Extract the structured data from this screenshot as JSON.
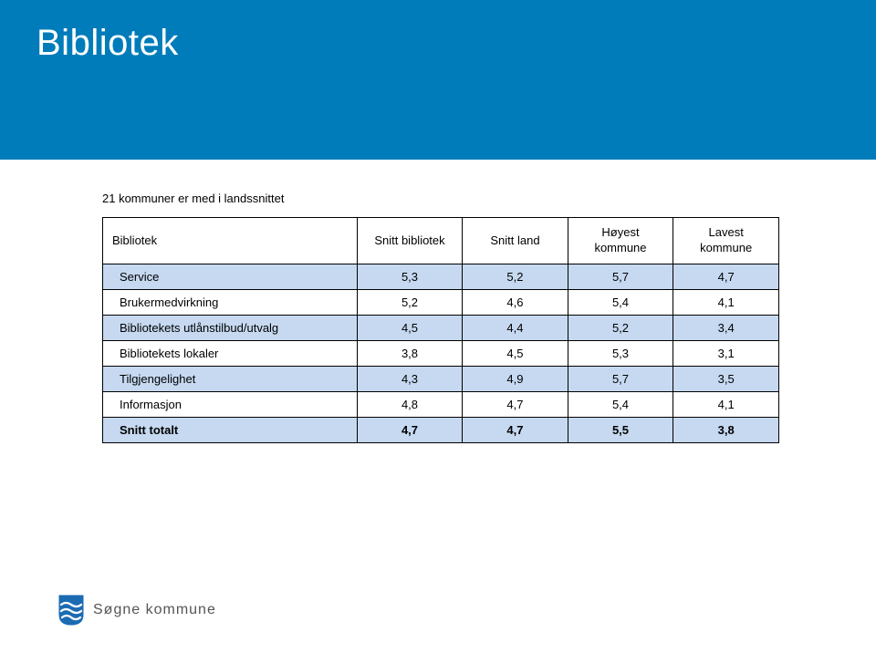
{
  "header": {
    "title": "Bibliotek",
    "band_color": "#007cba",
    "title_color": "#ffffff",
    "title_fontsize": 40
  },
  "subtitle": "21 kommuner er med i landssnittet",
  "table": {
    "header_bg": "#ffffff",
    "band_bg": "#c6d9f1",
    "border_color": "#000000",
    "font_size": 13,
    "columns": [
      "Bibliotek",
      "Snitt bibliotek",
      "Snitt land",
      "Høyest kommune",
      "Lavest kommune"
    ],
    "rows": [
      {
        "label": "Service",
        "c1": "5,3",
        "c2": "5,2",
        "c3": "5,7",
        "c4": "4,7",
        "band": true,
        "bold": false
      },
      {
        "label": "Brukermedvirkning",
        "c1": "5,2",
        "c2": "4,6",
        "c3": "5,4",
        "c4": "4,1",
        "band": false,
        "bold": false
      },
      {
        "label": "Bibliotekets utlånstilbud/utvalg",
        "c1": "4,5",
        "c2": "4,4",
        "c3": "5,2",
        "c4": "3,4",
        "band": true,
        "bold": false
      },
      {
        "label": "Bibliotekets lokaler",
        "c1": "3,8",
        "c2": "4,5",
        "c3": "5,3",
        "c4": "3,1",
        "band": false,
        "bold": false
      },
      {
        "label": "Tilgjengelighet",
        "c1": "4,3",
        "c2": "4,9",
        "c3": "5,7",
        "c4": "3,5",
        "band": true,
        "bold": false
      },
      {
        "label": "Informasjon",
        "c1": "4,8",
        "c2": "4,7",
        "c3": "5,4",
        "c4": "4,1",
        "band": false,
        "bold": false
      },
      {
        "label": "Snitt totalt",
        "c1": "4,7",
        "c2": "4,7",
        "c3": "5,5",
        "c4": "3,8",
        "band": true,
        "bold": true
      }
    ]
  },
  "footer": {
    "text": "Søgne kommune",
    "shield_fill": "#1b6bb3",
    "shield_wave": "#ffffff",
    "text_color": "#555555"
  }
}
